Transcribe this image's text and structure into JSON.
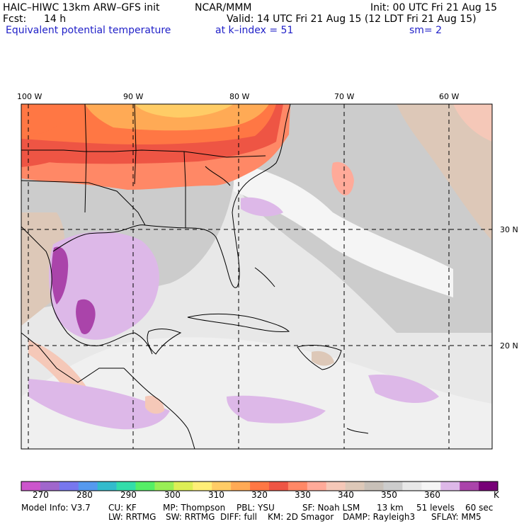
{
  "header": {
    "model": "HAIC–HIWC 13km ARW–GFS init",
    "org": "NCAR/MMM",
    "init": "Init: 00 UTC Fri 21 Aug 15",
    "fcst_label": "Fcst:",
    "fcst_value": "14 h",
    "valid": "Valid: 14 UTC Fri 21 Aug 15 (12 LDT Fri 21 Aug 15)",
    "field": "Equivalent potential temperature",
    "kindex": "at k–index =  51",
    "sm": "sm= 2"
  },
  "map": {
    "lon_labels": [
      "100 W",
      "90 W",
      "80 W",
      "70 W",
      "60 W"
    ],
    "lat_labels": [
      "30 N",
      "20 N"
    ]
  },
  "colorbar": {
    "colors": [
      "#cc55cc",
      "#a066cc",
      "#7777ee",
      "#5599ee",
      "#33bbcc",
      "#33ddaa",
      "#55ee66",
      "#99ee55",
      "#ddee55",
      "#ffee77",
      "#ffcc66",
      "#ffaa55",
      "#ff7744",
      "#ee5544",
      "#ff8866",
      "#ffaa99",
      "#f5c8b8",
      "#ddc8b8",
      "#c8c0b8",
      "#cccccc",
      "#e8e8e8",
      "#f5f5f5",
      "#ddb8e8",
      "#aa44aa",
      "#770077"
    ],
    "tick_labels": [
      "270",
      "280",
      "290",
      "300",
      "310",
      "320",
      "330",
      "340",
      "350",
      "360"
    ],
    "unit": "K"
  },
  "footer": {
    "line1": [
      "Model Info: V3.7",
      "CU: KF",
      "MP: Thompson",
      "PBL: YSU",
      "SF: Noah LSM",
      "13 km",
      "51 levels",
      "60 sec"
    ],
    "line2": [
      "LW: RRTMG",
      "SW: RRTMG",
      "DIFF: full",
      "KM: 2D Smagor",
      "DAMP: Rayleigh3",
      "SFLAY: MM5"
    ]
  }
}
